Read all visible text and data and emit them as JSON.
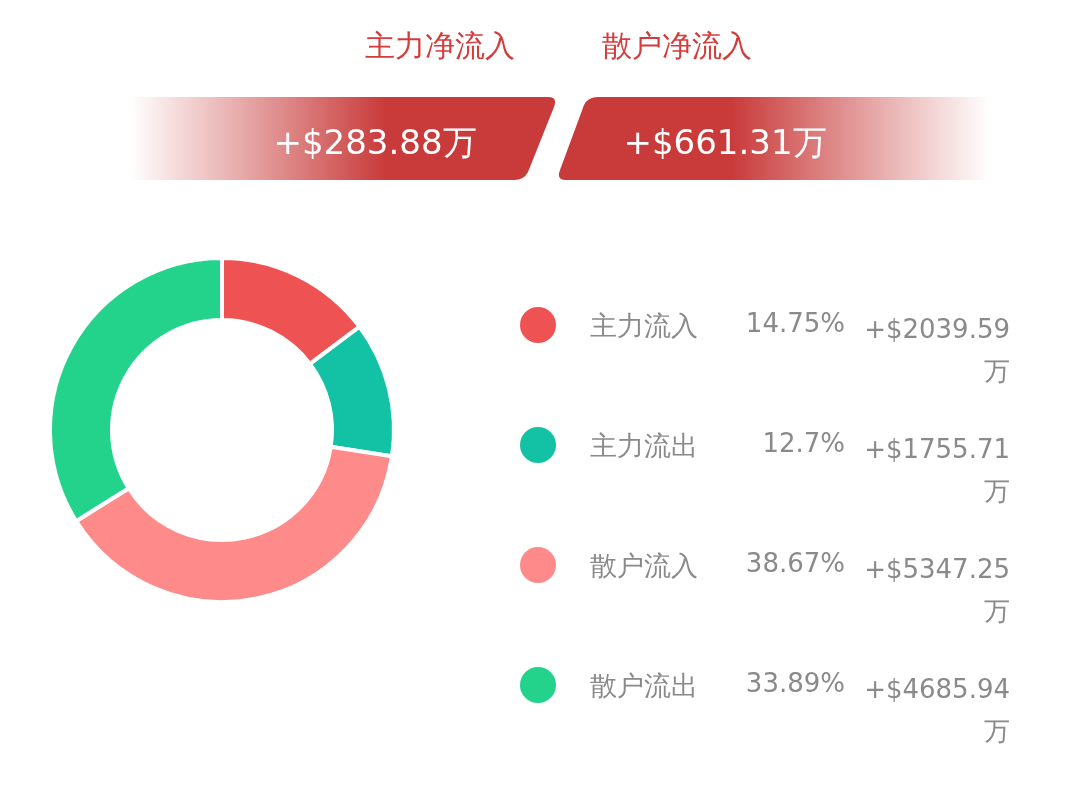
{
  "chart_data": {
    "type": "donut",
    "categories": [
      "主力流入",
      "主力流出",
      "散户流入",
      "散户流出"
    ],
    "values": [
      14.75,
      12.7,
      38.67,
      33.89
    ],
    "colors": [
      "#ef5252",
      "#13c2a4",
      "#ff8a8a",
      "#24d38b"
    ],
    "legend": "right",
    "annotations": [
      "主力净流入",
      "散户净流入",
      "+$283.88万",
      "+$661.31万",
      {
        "text": "14.75%",
        "x": "主力流入"
      },
      {
        "text": "12.7%",
        "x": "主力流出"
      },
      {
        "text": "38.67%",
        "x": "散户流入"
      },
      {
        "text": "33.89%",
        "x": "散户流出"
      },
      {
        "text": "+$2039.59万",
        "x": "主力流入"
      },
      {
        "text": "+$1755.71万",
        "x": "主力流出"
      },
      {
        "text": "+$5347.25万",
        "x": "散户流入"
      },
      {
        "text": "+$4685.94万",
        "x": "散户流出"
      }
    ]
  }
}
